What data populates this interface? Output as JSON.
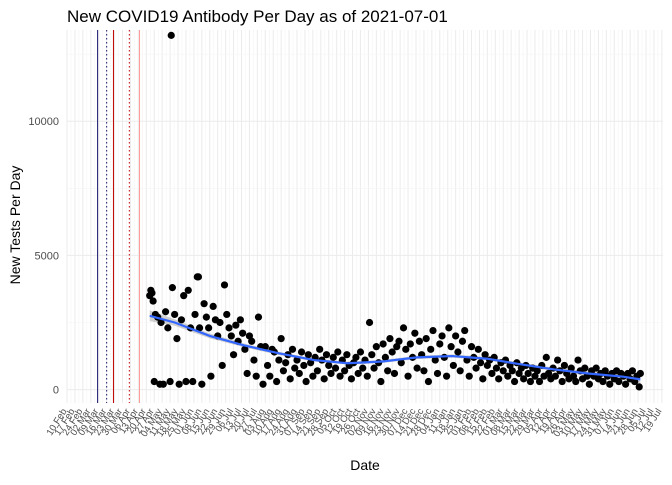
{
  "chart_data": {
    "type": "scatter",
    "title": "New COVID19 Antibody Per Day as of 2021-07-01",
    "xlabel": "Date",
    "ylabel": "New Tests Per Day",
    "x_axis": {
      "type": "date",
      "start": "2020-02-10",
      "end": "2021-07-20",
      "tick_interval_days": 7
    },
    "y_ticks": [
      0,
      5000,
      10000
    ],
    "ylim": [
      -500,
      13400
    ],
    "grid": true,
    "reference_lines": [
      {
        "date": "2020-03-08",
        "color": "#1a1a6e",
        "style": "solid"
      },
      {
        "date": "2020-03-16",
        "color": "#1a1a6e",
        "style": "dotted"
      },
      {
        "date": "2020-03-22",
        "color": "#c00000",
        "style": "solid"
      },
      {
        "date": "2020-04-05",
        "color": "#c00000",
        "style": "dotted"
      },
      {
        "date": "2020-04-14",
        "color": "#ff9999",
        "style": "solid"
      }
    ],
    "series": [
      {
        "type": "points",
        "color": "#000000",
        "points": [
          [
            "2020-04-23",
            3500
          ],
          [
            "2020-04-24",
            3700
          ],
          [
            "2020-04-25",
            3600
          ],
          [
            "2020-04-26",
            3300
          ],
          [
            "2020-04-27",
            300
          ],
          [
            "2020-04-28",
            2800
          ],
          [
            "2020-04-30",
            2700
          ],
          [
            "2020-05-02",
            200
          ],
          [
            "2020-05-03",
            2500
          ],
          [
            "2020-05-05",
            200
          ],
          [
            "2020-05-07",
            2900
          ],
          [
            "2020-05-09",
            2300
          ],
          [
            "2020-05-11",
            300
          ],
          [
            "2020-05-12",
            13200
          ],
          [
            "2020-05-13",
            3800
          ],
          [
            "2020-05-15",
            2800
          ],
          [
            "2020-05-17",
            1900
          ],
          [
            "2020-05-19",
            200
          ],
          [
            "2020-05-21",
            2600
          ],
          [
            "2020-05-23",
            3500
          ],
          [
            "2020-05-25",
            300
          ],
          [
            "2020-05-27",
            3700
          ],
          [
            "2020-05-29",
            2300
          ],
          [
            "2020-05-31",
            300
          ],
          [
            "2020-06-02",
            2800
          ],
          [
            "2020-06-04",
            4200
          ],
          [
            "2020-06-05",
            4200
          ],
          [
            "2020-06-06",
            2300
          ],
          [
            "2020-06-08",
            200
          ],
          [
            "2020-06-10",
            3200
          ],
          [
            "2020-06-12",
            2700
          ],
          [
            "2020-06-14",
            2300
          ],
          [
            "2020-06-16",
            500
          ],
          [
            "2020-06-18",
            3100
          ],
          [
            "2020-06-20",
            2600
          ],
          [
            "2020-06-22",
            2000
          ],
          [
            "2020-06-24",
            2500
          ],
          [
            "2020-06-26",
            900
          ],
          [
            "2020-06-28",
            3900
          ],
          [
            "2020-06-30",
            2800
          ],
          [
            "2020-07-02",
            2300
          ],
          [
            "2020-07-04",
            2000
          ],
          [
            "2020-07-06",
            1300
          ],
          [
            "2020-07-08",
            2400
          ],
          [
            "2020-07-10",
            1800
          ],
          [
            "2020-07-12",
            2600
          ],
          [
            "2020-07-14",
            2100
          ],
          [
            "2020-07-16",
            1500
          ],
          [
            "2020-07-18",
            600
          ],
          [
            "2020-07-20",
            2000
          ],
          [
            "2020-07-22",
            1800
          ],
          [
            "2020-07-24",
            1100
          ],
          [
            "2020-07-26",
            500
          ],
          [
            "2020-07-28",
            2700
          ],
          [
            "2020-07-30",
            1600
          ],
          [
            "2020-08-01",
            200
          ],
          [
            "2020-08-03",
            1600
          ],
          [
            "2020-08-05",
            900
          ],
          [
            "2020-08-07",
            500
          ],
          [
            "2020-08-09",
            1500
          ],
          [
            "2020-08-11",
            1400
          ],
          [
            "2020-08-13",
            300
          ],
          [
            "2020-08-15",
            1100
          ],
          [
            "2020-08-17",
            1900
          ],
          [
            "2020-08-19",
            700
          ],
          [
            "2020-08-21",
            1000
          ],
          [
            "2020-08-23",
            1300
          ],
          [
            "2020-08-25",
            400
          ],
          [
            "2020-08-27",
            1500
          ],
          [
            "2020-08-29",
            800
          ],
          [
            "2020-08-31",
            1100
          ],
          [
            "2020-09-02",
            600
          ],
          [
            "2020-09-04",
            1400
          ],
          [
            "2020-09-06",
            900
          ],
          [
            "2020-09-08",
            300
          ],
          [
            "2020-09-10",
            1300
          ],
          [
            "2020-09-12",
            1000
          ],
          [
            "2020-09-14",
            500
          ],
          [
            "2020-09-16",
            1200
          ],
          [
            "2020-09-18",
            700
          ],
          [
            "2020-09-20",
            1500
          ],
          [
            "2020-09-22",
            1100
          ],
          [
            "2020-09-24",
            400
          ],
          [
            "2020-09-26",
            1300
          ],
          [
            "2020-09-28",
            900
          ],
          [
            "2020-09-30",
            600
          ],
          [
            "2020-10-02",
            1200
          ],
          [
            "2020-10-04",
            800
          ],
          [
            "2020-10-06",
            1400
          ],
          [
            "2020-10-08",
            500
          ],
          [
            "2020-10-10",
            1100
          ],
          [
            "2020-10-12",
            700
          ],
          [
            "2020-10-14",
            1300
          ],
          [
            "2020-10-16",
            900
          ],
          [
            "2020-10-18",
            400
          ],
          [
            "2020-10-20",
            1000
          ],
          [
            "2020-10-22",
            1200
          ],
          [
            "2020-10-24",
            600
          ],
          [
            "2020-10-26",
            1400
          ],
          [
            "2020-10-28",
            800
          ],
          [
            "2020-10-30",
            1100
          ],
          [
            "2020-11-01",
            500
          ],
          [
            "2020-11-03",
            2500
          ],
          [
            "2020-11-05",
            1300
          ],
          [
            "2020-11-07",
            800
          ],
          [
            "2020-11-09",
            1600
          ],
          [
            "2020-11-11",
            1000
          ],
          [
            "2020-11-13",
            300
          ],
          [
            "2020-11-15",
            1700
          ],
          [
            "2020-11-17",
            1200
          ],
          [
            "2020-11-19",
            700
          ],
          [
            "2020-11-21",
            1900
          ],
          [
            "2020-11-23",
            1400
          ],
          [
            "2020-11-25",
            600
          ],
          [
            "2020-11-27",
            1600
          ],
          [
            "2020-11-29",
            1800
          ],
          [
            "2020-12-01",
            1000
          ],
          [
            "2020-12-03",
            2300
          ],
          [
            "2020-12-05",
            1500
          ],
          [
            "2020-12-07",
            500
          ],
          [
            "2020-12-09",
            1700
          ],
          [
            "2020-12-11",
            1200
          ],
          [
            "2020-12-13",
            2100
          ],
          [
            "2020-12-15",
            800
          ],
          [
            "2020-12-17",
            1800
          ],
          [
            "2020-12-19",
            1300
          ],
          [
            "2020-12-21",
            700
          ],
          [
            "2020-12-23",
            1900
          ],
          [
            "2020-12-25",
            300
          ],
          [
            "2020-12-27",
            1500
          ],
          [
            "2020-12-29",
            2200
          ],
          [
            "2020-12-31",
            1100
          ],
          [
            "2021-01-02",
            600
          ],
          [
            "2021-01-04",
            1700
          ],
          [
            "2021-01-06",
            2000
          ],
          [
            "2021-01-08",
            1200
          ],
          [
            "2021-01-10",
            500
          ],
          [
            "2021-01-12",
            2300
          ],
          [
            "2021-01-14",
            1600
          ],
          [
            "2021-01-16",
            900
          ],
          [
            "2021-01-18",
            2000
          ],
          [
            "2021-01-20",
            1400
          ],
          [
            "2021-01-22",
            700
          ],
          [
            "2021-01-24",
            1800
          ],
          [
            "2021-01-26",
            2200
          ],
          [
            "2021-01-28",
            1100
          ],
          [
            "2021-01-30",
            500
          ],
          [
            "2021-02-01",
            1600
          ],
          [
            "2021-02-03",
            1200
          ],
          [
            "2021-02-05",
            800
          ],
          [
            "2021-02-07",
            1500
          ],
          [
            "2021-02-09",
            1000
          ],
          [
            "2021-02-11",
            400
          ],
          [
            "2021-02-13",
            1300
          ],
          [
            "2021-02-15",
            900
          ],
          [
            "2021-02-17",
            1100
          ],
          [
            "2021-02-19",
            600
          ],
          [
            "2021-02-21",
            1200
          ],
          [
            "2021-02-23",
            800
          ],
          [
            "2021-02-25",
            400
          ],
          [
            "2021-02-27",
            1000
          ],
          [
            "2021-03-01",
            700
          ],
          [
            "2021-03-03",
            1100
          ],
          [
            "2021-03-05",
            500
          ],
          [
            "2021-03-07",
            900
          ],
          [
            "2021-03-09",
            700
          ],
          [
            "2021-03-11",
            300
          ],
          [
            "2021-03-13",
            1000
          ],
          [
            "2021-03-15",
            600
          ],
          [
            "2021-03-17",
            800
          ],
          [
            "2021-03-19",
            400
          ],
          [
            "2021-03-21",
            900
          ],
          [
            "2021-03-23",
            600
          ],
          [
            "2021-03-25",
            300
          ],
          [
            "2021-03-27",
            800
          ],
          [
            "2021-03-29",
            500
          ],
          [
            "2021-03-31",
            700
          ],
          [
            "2021-04-02",
            300
          ],
          [
            "2021-04-04",
            900
          ],
          [
            "2021-04-06",
            500
          ],
          [
            "2021-04-08",
            1200
          ],
          [
            "2021-04-10",
            600
          ],
          [
            "2021-04-12",
            400
          ],
          [
            "2021-04-14",
            800
          ],
          [
            "2021-04-16",
            500
          ],
          [
            "2021-04-18",
            1100
          ],
          [
            "2021-04-20",
            700
          ],
          [
            "2021-04-22",
            300
          ],
          [
            "2021-04-24",
            900
          ],
          [
            "2021-04-26",
            600
          ],
          [
            "2021-04-28",
            400
          ],
          [
            "2021-04-30",
            800
          ],
          [
            "2021-05-02",
            500
          ],
          [
            "2021-05-04",
            300
          ],
          [
            "2021-05-06",
            1100
          ],
          [
            "2021-05-08",
            700
          ],
          [
            "2021-05-10",
            400
          ],
          [
            "2021-05-12",
            800
          ],
          [
            "2021-05-14",
            500
          ],
          [
            "2021-05-16",
            200
          ],
          [
            "2021-05-18",
            700
          ],
          [
            "2021-05-20",
            500
          ],
          [
            "2021-05-22",
            800
          ],
          [
            "2021-05-24",
            400
          ],
          [
            "2021-05-26",
            600
          ],
          [
            "2021-05-28",
            300
          ],
          [
            "2021-05-30",
            700
          ],
          [
            "2021-06-01",
            500
          ],
          [
            "2021-06-03",
            200
          ],
          [
            "2021-06-05",
            600
          ],
          [
            "2021-06-07",
            400
          ],
          [
            "2021-06-09",
            700
          ],
          [
            "2021-06-11",
            300
          ],
          [
            "2021-06-13",
            600
          ],
          [
            "2021-06-15",
            500
          ],
          [
            "2021-06-17",
            200
          ],
          [
            "2021-06-19",
            600
          ],
          [
            "2021-06-21",
            400
          ],
          [
            "2021-06-23",
            700
          ],
          [
            "2021-06-25",
            300
          ],
          [
            "2021-06-27",
            500
          ],
          [
            "2021-06-29",
            100
          ],
          [
            "2021-06-30",
            600
          ]
        ]
      },
      {
        "type": "smooth",
        "color": "#3366ff",
        "band_color": "#999999",
        "points": [
          [
            "2020-04-23",
            2750,
            200
          ],
          [
            "2020-05-15",
            2500,
            120
          ],
          [
            "2020-06-15",
            2000,
            90
          ],
          [
            "2020-07-15",
            1650,
            70
          ],
          [
            "2020-08-15",
            1350,
            60
          ],
          [
            "2020-09-15",
            1100,
            55
          ],
          [
            "2020-10-15",
            980,
            55
          ],
          [
            "2020-11-15",
            1050,
            55
          ],
          [
            "2020-12-15",
            1200,
            60
          ],
          [
            "2021-01-15",
            1250,
            60
          ],
          [
            "2021-02-15",
            1150,
            60
          ],
          [
            "2021-03-15",
            950,
            60
          ],
          [
            "2021-04-15",
            750,
            65
          ],
          [
            "2021-05-15",
            600,
            80
          ],
          [
            "2021-06-15",
            480,
            110
          ],
          [
            "2021-06-30",
            380,
            150
          ]
        ]
      }
    ]
  }
}
